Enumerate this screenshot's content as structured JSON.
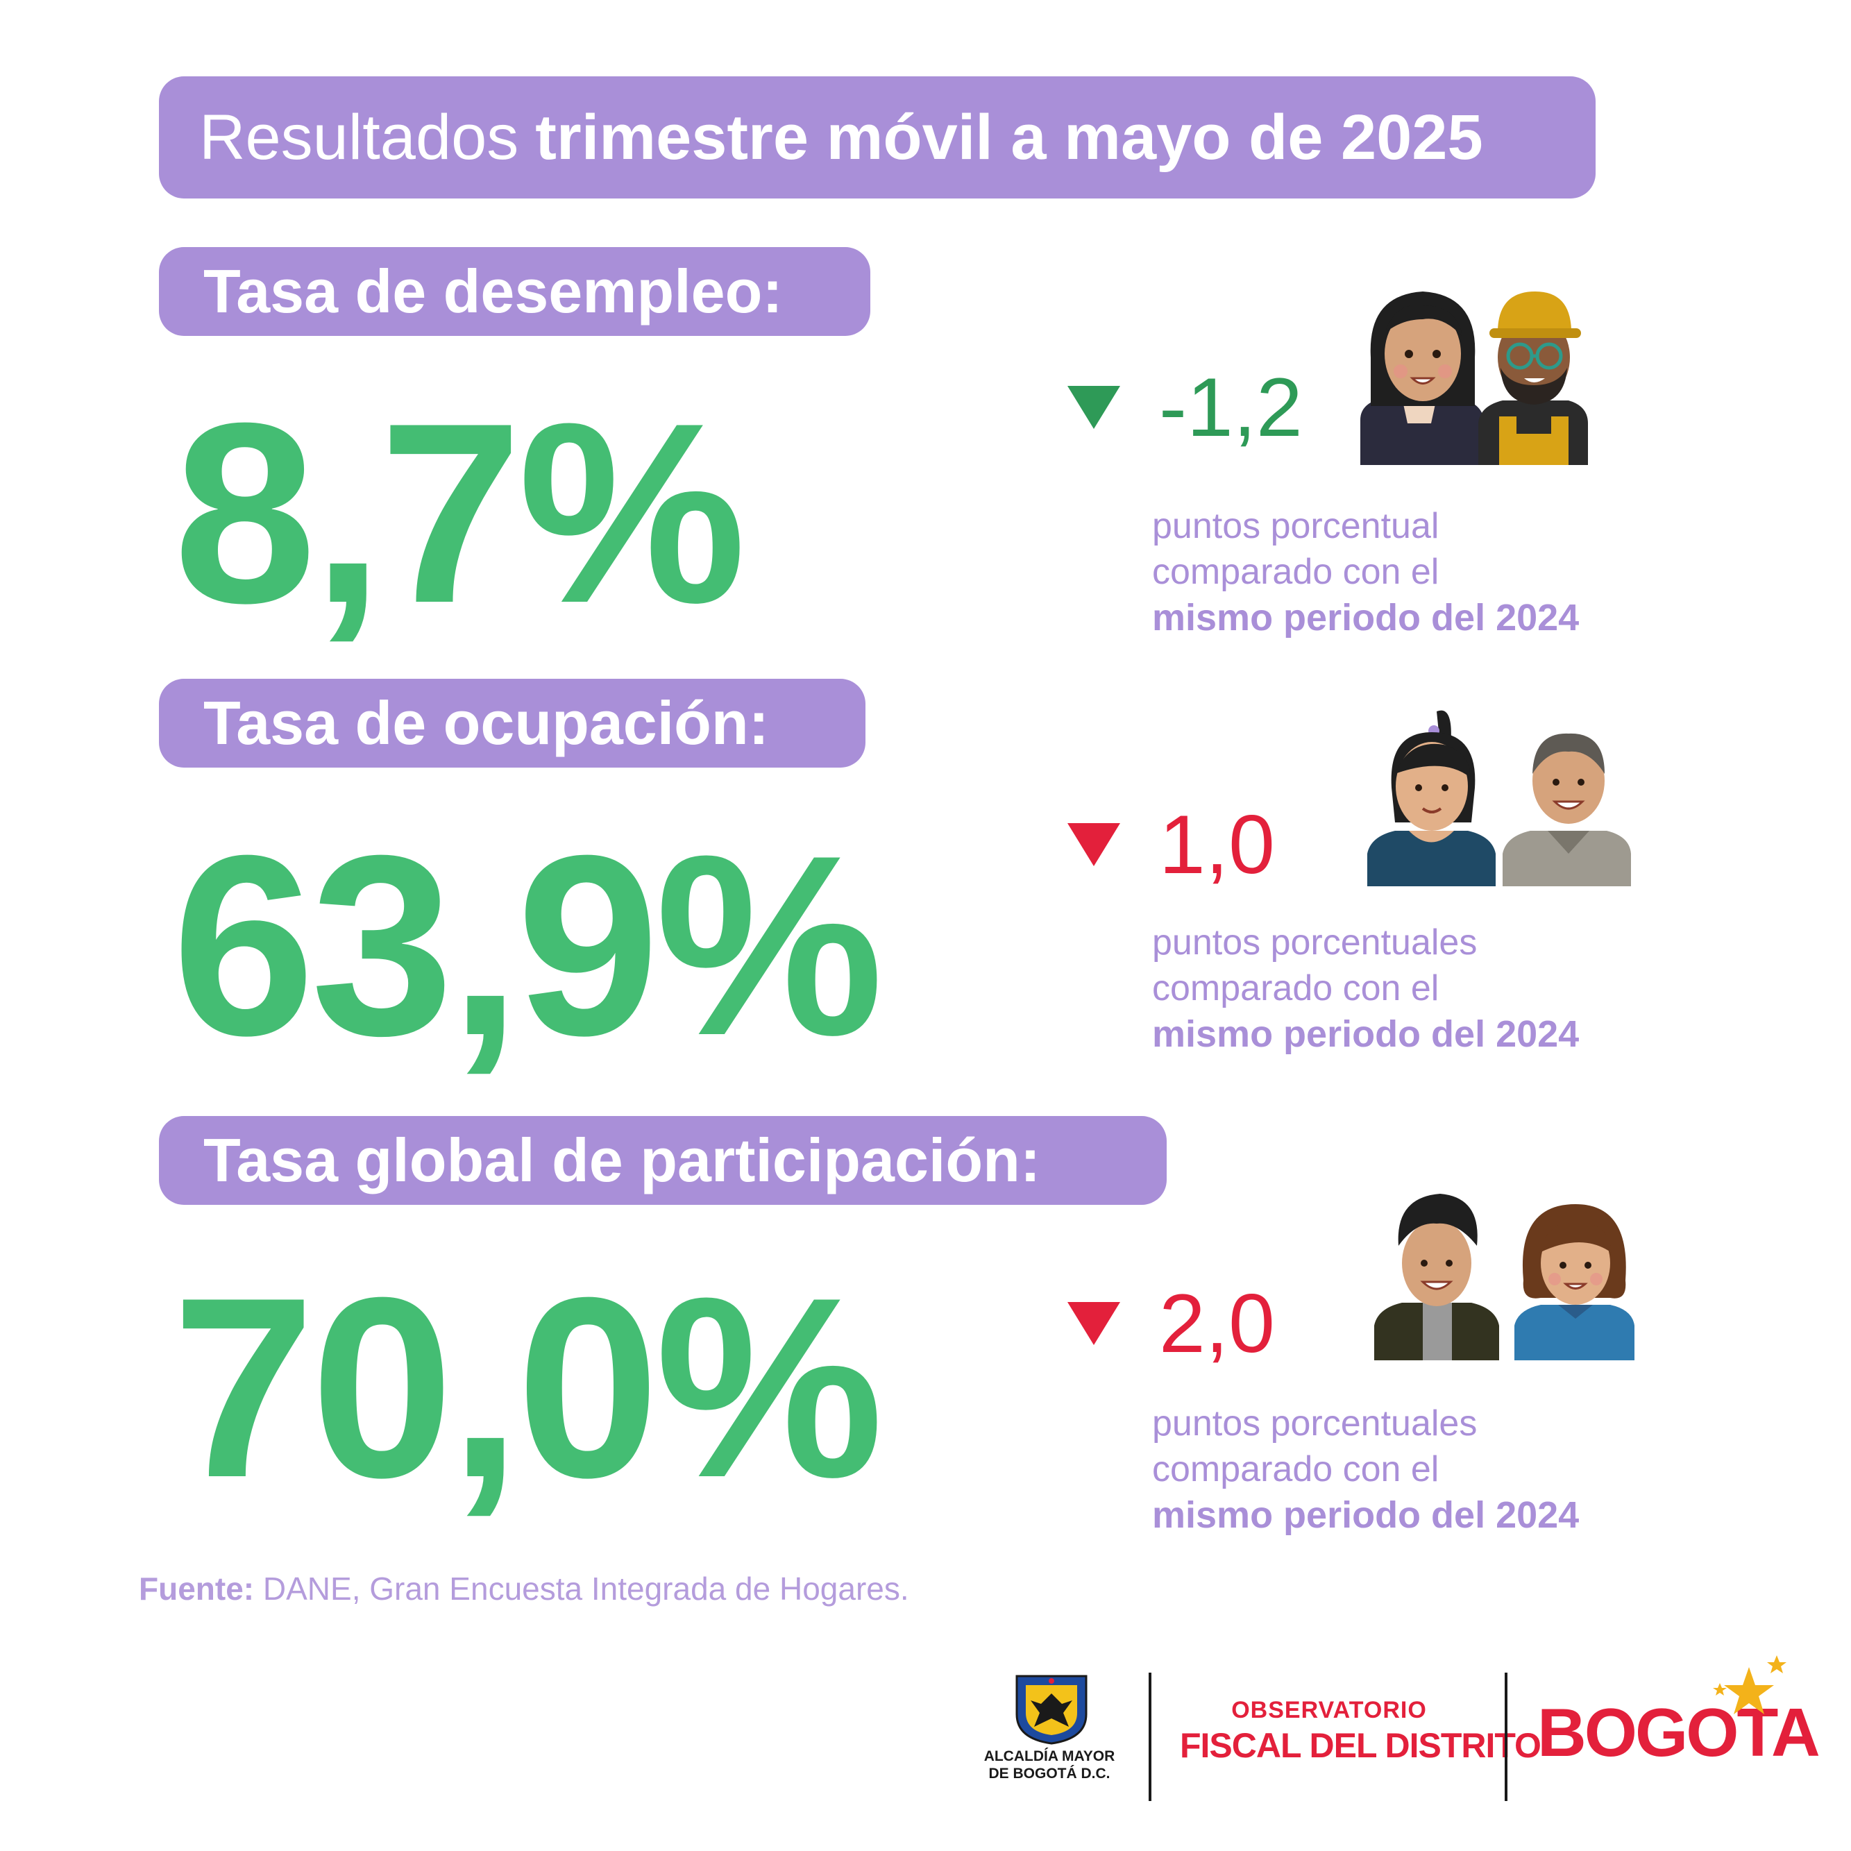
{
  "header": {
    "title_light": "Resultados",
    "title_bold": "trimestre móvil a mayo de 2025"
  },
  "indicators": [
    {
      "label": "Tasa de desempleo:",
      "value": "8,7%",
      "direction": "down",
      "delta_color": "#2e9a57",
      "delta": "-1,2",
      "desc_line1": "puntos porcentual",
      "desc_line2": "comparado con el",
      "desc_line3": "mismo periodo del 2024"
    },
    {
      "label": "Tasa de ocupación:",
      "value": "63,9%",
      "direction": "down",
      "delta_color": "#e3203b",
      "delta": "1,0",
      "desc_line1": "puntos porcentuales",
      "desc_line2": "comparado con el",
      "desc_line3": "mismo periodo del 2024"
    },
    {
      "label": "Tasa global de participación:",
      "value": "70,0%",
      "direction": "down",
      "delta_color": "#e3203b",
      "delta": "2,0",
      "desc_line1": "puntos porcentuales",
      "desc_line2": "comparado con el",
      "desc_line3": "mismo periodo del 2024"
    }
  ],
  "source": {
    "label": "Fuente:",
    "text": "DANE, Gran Encuesta Integrada de Hogares."
  },
  "footer": {
    "alcaldia_line1": "ALCALDÍA MAYOR",
    "alcaldia_line2": "DE BOGOTÁ D.C.",
    "observatorio_line1": "OBSERVATORIO",
    "observatorio_line2": "FISCAL DEL DISTRITO",
    "bogota_logo": "BOGOTA"
  },
  "colors": {
    "purple": "#a98fd8",
    "green_value": "#44bd73",
    "green_delta": "#2e9a57",
    "red": "#e3203b"
  }
}
